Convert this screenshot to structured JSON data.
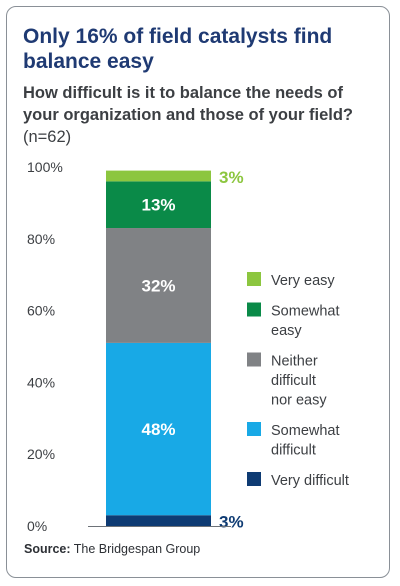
{
  "title": "Only 16% of field catalysts find balance easy",
  "question": "How difficult is it to balance the needs of your organization and those of your field?",
  "sample_size": "(n=62)",
  "source_label": "Source:",
  "source_text": "The Bridgespan Group",
  "chart_data": {
    "type": "bar",
    "stacked": true,
    "categories": [
      ""
    ],
    "ylim": [
      0,
      100
    ],
    "yticks": [
      "0%",
      "20%",
      "40%",
      "60%",
      "80%",
      "100%"
    ],
    "series": [
      {
        "name": "Very difficult",
        "values": [
          3
        ],
        "label": "3%",
        "color": "#0e3b73"
      },
      {
        "name": "Somewhat difficult",
        "values": [
          48
        ],
        "label": "48%",
        "color": "#18a9e6"
      },
      {
        "name": "Neither difficult nor easy",
        "values": [
          32
        ],
        "label": "32%",
        "color": "#808285"
      },
      {
        "name": "Somewhat easy",
        "values": [
          13
        ],
        "label": "13%",
        "color": "#0a8a48"
      },
      {
        "name": "Very easy",
        "values": [
          3
        ],
        "label": "3%",
        "color": "#8cc63f"
      }
    ],
    "legend": {
      "position": "right",
      "order": [
        "Very easy",
        "Somewhat easy",
        "Neither difficult nor easy",
        "Somewhat difficult",
        "Very difficult"
      ],
      "lines": [
        [
          "Very easy"
        ],
        [
          "Somewhat",
          "easy"
        ],
        [
          "Neither",
          "difficult",
          "nor easy"
        ],
        [
          "Somewhat",
          "difficult"
        ],
        [
          "Very difficult"
        ]
      ]
    }
  }
}
